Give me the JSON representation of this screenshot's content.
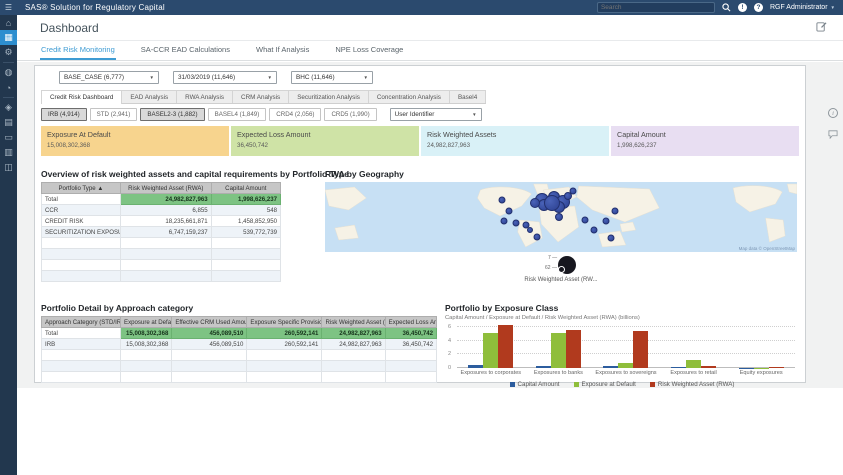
{
  "topbar": {
    "app_title": "SAS® Solution for Regulatory Capital",
    "search_placeholder": "Search",
    "user_menu": "RGF Administrator"
  },
  "page": {
    "title": "Dashboard"
  },
  "icons": {
    "menu": "☰",
    "notifications": "!",
    "help": "?",
    "dropdown_arrow": "▼",
    "sort_asc": "▲",
    "info": "i"
  },
  "sidebar_icons": [
    {
      "name": "home-icon",
      "glyph": "⌂"
    },
    {
      "name": "dashboard-icon",
      "glyph": "▦",
      "active": true
    },
    {
      "name": "settings-gear-icon",
      "glyph": "⚙"
    },
    {
      "divider": true
    },
    {
      "name": "globe-report-icon",
      "glyph": "◍"
    },
    {
      "name": "analytics-icon",
      "glyph": "◔"
    },
    {
      "divider": true
    },
    {
      "name": "share-icon",
      "glyph": "◈"
    },
    {
      "name": "documents-icon",
      "glyph": "▤"
    },
    {
      "name": "comments-icon",
      "glyph": "▭"
    },
    {
      "name": "bank-icon",
      "glyph": "▥"
    },
    {
      "name": "workflow-icon",
      "glyph": "◫"
    }
  ],
  "main_tabs": [
    {
      "label": "Credit Risk Monitoring",
      "active": true
    },
    {
      "label": "SA-CCR EAD Calculations",
      "active": false
    },
    {
      "label": "What If Analysis",
      "active": false
    },
    {
      "label": "NPE Loss Coverage",
      "active": false
    }
  ],
  "filter_dropdowns": [
    {
      "value": "BASE_CASE (6,777)"
    },
    {
      "value": "31/03/2019 (11,646)"
    },
    {
      "value": "BHC (11,646)"
    }
  ],
  "sub_tabs": [
    {
      "label": "Credit Risk Dashboard",
      "active": true
    },
    {
      "label": "EAD Analysis",
      "active": false
    },
    {
      "label": "RWA Analysis",
      "active": false
    },
    {
      "label": "CRM Analysis",
      "active": false
    },
    {
      "label": "Securitization Analysis",
      "active": false
    },
    {
      "label": "Concentration Analysis",
      "active": false
    },
    {
      "label": "Basel4",
      "active": false
    }
  ],
  "toggle_buttons": [
    {
      "label": "IRB (4,914)",
      "selected": true
    },
    {
      "label": "STD (2,941)",
      "selected": false
    },
    {
      "label": "BASEL2-3 (1,882)",
      "selected": true
    },
    {
      "label": "BASEL4 (1,849)",
      "selected": false
    },
    {
      "label": "CRD4 (2,056)",
      "selected": false
    },
    {
      "label": "CRD5 (1,990)",
      "selected": false
    }
  ],
  "user_identifier_dropdown": {
    "value": "User Identifier"
  },
  "kpis": [
    {
      "label": "Exposure At Default",
      "value": "15,008,302,368",
      "bg": "#f7d48e"
    },
    {
      "label": "Expected Loss Amount",
      "value": "36,450,742",
      "bg": "#cfe3a6"
    },
    {
      "label": "Risk Weighted Assets",
      "value": "24,982,827,963",
      "bg": "#d9f1f7"
    },
    {
      "label": "Capital Amount",
      "value": "1,998,626,237",
      "bg": "#e8def2"
    }
  ],
  "overview_table": {
    "title": "Overview of risk weighted assets and capital requirements by Portfolio Type",
    "columns": [
      "Portfolio Type",
      "Risk Weighted Asset (RWA)",
      "Capital Amount"
    ],
    "rows": [
      {
        "cells": [
          "Total",
          "24,982,827,963",
          "1,998,626,237"
        ],
        "total": true
      },
      {
        "cells": [
          "CCR",
          "6,855",
          "548"
        ]
      },
      {
        "cells": [
          "CREDIT RISK",
          "18,235,661,871",
          "1,458,852,950"
        ]
      },
      {
        "cells": [
          "SECURITIZATION EXPOSURES",
          "6,747,159,237",
          "539,772,739"
        ]
      }
    ],
    "empty_rows": 4
  },
  "map": {
    "title": "RWA by Geography",
    "attribution": "Map data © OpenStreetMap",
    "legend": {
      "max_label": "7",
      "min_label": "62",
      "label": "Risk Weighted Asset (RW..."
    },
    "bubbles": [
      {
        "x": 46,
        "y": 26,
        "r": 7
      },
      {
        "x": 48.5,
        "y": 22,
        "r": 6
      },
      {
        "x": 50.5,
        "y": 28,
        "r": 7
      },
      {
        "x": 46.5,
        "y": 33,
        "r": 6
      },
      {
        "x": 49.5,
        "y": 35,
        "r": 6
      },
      {
        "x": 44.5,
        "y": 30,
        "r": 5
      },
      {
        "x": 51.5,
        "y": 20,
        "r": 4
      },
      {
        "x": 48,
        "y": 30,
        "r": 8
      },
      {
        "x": 52.5,
        "y": 13,
        "r": 3.5
      },
      {
        "x": 49.5,
        "y": 50,
        "r": 4
      },
      {
        "x": 37.5,
        "y": 26,
        "r": 3.5
      },
      {
        "x": 39,
        "y": 42,
        "r": 3.5
      },
      {
        "x": 38,
        "y": 55,
        "r": 3.5
      },
      {
        "x": 40.5,
        "y": 58,
        "r": 3.5
      },
      {
        "x": 42.5,
        "y": 62,
        "r": 3.5
      },
      {
        "x": 43.5,
        "y": 68,
        "r": 3
      },
      {
        "x": 45,
        "y": 78,
        "r": 3.5
      },
      {
        "x": 61.5,
        "y": 42,
        "r": 3.5
      },
      {
        "x": 55,
        "y": 54,
        "r": 3.5
      },
      {
        "x": 59.5,
        "y": 56,
        "r": 3.5
      },
      {
        "x": 57,
        "y": 68,
        "r": 3.5
      },
      {
        "x": 60.5,
        "y": 80,
        "r": 3.5
      }
    ]
  },
  "detail_table": {
    "title": "Portfolio Detail by Approach category",
    "columns": [
      "Approach Category (STD/IRB)",
      "Exposure at Default",
      "Effective CRM Used Amount",
      "Exposure Specific Provisions",
      "Risk Weighted Asset (RWA)",
      "Expected Loss Amount"
    ],
    "rows": [
      {
        "cells": [
          "Total",
          "15,008,302,368",
          "456,089,510",
          "260,592,141",
          "24,982,827,963",
          "36,450,742"
        ],
        "total": true
      },
      {
        "cells": [
          "IRB",
          "15,008,302,368",
          "456,089,510",
          "260,592,141",
          "24,982,827,963",
          "36,450,742"
        ]
      }
    ],
    "empty_rows": 3
  },
  "chart_data": {
    "type": "bar",
    "title": "Portfolio by Exposure Class",
    "subtitle": "Capital Amount / Exposure at Default / Risk Weighted Asset (RWA) (billions)",
    "categories": [
      "Exposures to corporates",
      "Exposures to banks",
      "Exposures to sovereigns",
      "Exposures to retail",
      "Equity exposures"
    ],
    "series": [
      {
        "name": "Capital Amount",
        "color": "#2c5d9e",
        "values": [
          0.4,
          0.3,
          0.3,
          0.1,
          0.03
        ]
      },
      {
        "name": "Exposure at Default",
        "color": "#8fbe3b",
        "values": [
          5.2,
          5.1,
          0.8,
          1.2,
          0.05
        ]
      },
      {
        "name": "Risk Weighted Asset (RWA)",
        "color": "#b13a1e",
        "values": [
          6.3,
          5.6,
          5.4,
          0.3,
          0.2
        ]
      }
    ],
    "ylim": [
      0,
      6.5
    ],
    "yticks": [
      0,
      2,
      4,
      6
    ],
    "grid": "dotted-horizontal",
    "legend_position": "bottom"
  },
  "colors": {
    "topbar_bg": "#2b4a6e",
    "sidebar_bg": "#22374e",
    "active_nav": "#2d8ecf",
    "tab_active": "#3d9bd3",
    "total_highlight": "#7dc383",
    "map_ocean": "#c7e0f4",
    "map_land": "#f6f2e6"
  }
}
